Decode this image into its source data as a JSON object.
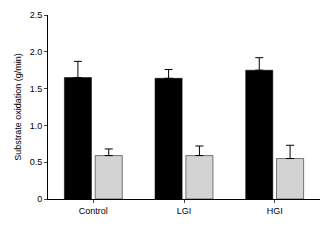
{
  "chart_data": {
    "type": "bar",
    "y_label": "Substrate oxidation (g/min)",
    "categories": [
      "Control",
      "LGI",
      "HGI"
    ],
    "series": [
      {
        "color": "#000000",
        "values": [
          1.65,
          1.64,
          1.75
        ],
        "errors": [
          0.22,
          0.12,
          0.17
        ]
      },
      {
        "color": "#d3d3d3",
        "values": [
          0.59,
          0.59,
          0.55
        ],
        "errors": [
          0.09,
          0.13,
          0.18
        ]
      }
    ],
    "ylim": [
      0,
      2.5
    ],
    "yticks": [
      0,
      0.5,
      {
        "value": 1,
        "label": "1.0"
      },
      1.5,
      {
        "value": 2,
        "label": "2.0"
      },
      2.5
    ],
    "grid": false
  }
}
